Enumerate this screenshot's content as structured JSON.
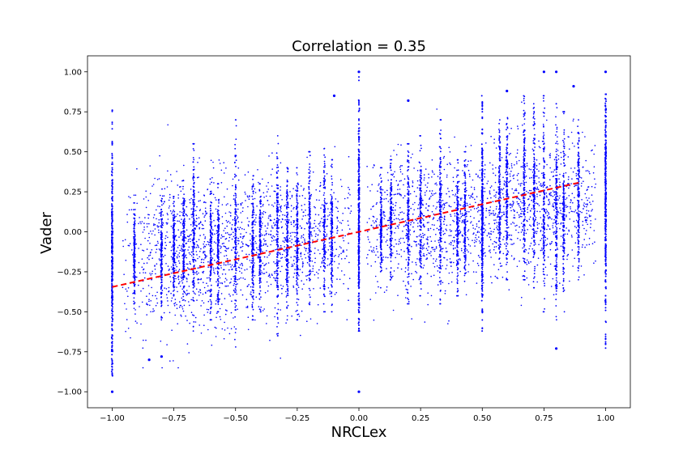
{
  "chart_data": {
    "type": "scatter",
    "title": "Correlation = 0.35",
    "xlabel": "NRCLex",
    "ylabel": "Vader",
    "xlim": [
      -1.1,
      1.1
    ],
    "ylim": [
      -1.1,
      1.1
    ],
    "x_ticks": [
      -1.0,
      -0.75,
      -0.5,
      -0.25,
      0.0,
      0.25,
      0.5,
      0.75,
      1.0
    ],
    "x_tick_labels": [
      "−1.00",
      "−0.75",
      "−0.50",
      "−0.25",
      "0.00",
      "0.25",
      "0.50",
      "0.75",
      "1.00"
    ],
    "y_ticks": [
      -1.0,
      -0.75,
      -0.5,
      -0.25,
      0.0,
      0.25,
      0.5,
      0.75,
      1.0
    ],
    "y_tick_labels": [
      "−1.00",
      "−0.75",
      "−0.50",
      "−0.25",
      "0.00",
      "0.25",
      "0.50",
      "0.75",
      "1.00"
    ],
    "grid": false,
    "legend": "none",
    "point_color": "#0000ff",
    "trend_color": "#ff0000",
    "trend_style": "dashed",
    "trend_line": {
      "x": [
        -1.0,
        0.9
      ],
      "y": [
        -0.345,
        0.31
      ]
    },
    "correlation": 0.35,
    "dense_columns": [
      {
        "x": -1.0,
        "ymin": -0.9,
        "ymax": 0.76,
        "center": -0.2,
        "spread": 0.3
      },
      {
        "x": 0.0,
        "ymin": -0.62,
        "ymax": 0.98,
        "center": 0.05,
        "spread": 0.3
      },
      {
        "x": 0.5,
        "ymin": -0.62,
        "ymax": 0.85,
        "center": 0.1,
        "spread": 0.25
      },
      {
        "x": 1.0,
        "ymin": -0.75,
        "ymax": 0.86,
        "center": 0.25,
        "spread": 0.3
      }
    ],
    "columns": [
      {
        "x": -0.91,
        "ymin": -0.45,
        "ymax": 0.18
      },
      {
        "x": -0.8,
        "ymin": -0.55,
        "ymax": 0.28
      },
      {
        "x": -0.75,
        "ymin": -0.45,
        "ymax": 0.22
      },
      {
        "x": -0.71,
        "ymin": -0.45,
        "ymax": 0.32
      },
      {
        "x": -0.67,
        "ymin": -0.62,
        "ymax": 0.55
      },
      {
        "x": -0.6,
        "ymin": -0.55,
        "ymax": 0.33
      },
      {
        "x": -0.57,
        "ymin": -0.5,
        "ymax": 0.3
      },
      {
        "x": -0.5,
        "ymin": -0.72,
        "ymax": 0.7
      },
      {
        "x": -0.43,
        "ymin": -0.55,
        "ymax": 0.35
      },
      {
        "x": -0.4,
        "ymin": -0.5,
        "ymax": 0.3
      },
      {
        "x": -0.33,
        "ymin": -0.65,
        "ymax": 0.6
      },
      {
        "x": -0.29,
        "ymin": -0.55,
        "ymax": 0.4
      },
      {
        "x": -0.25,
        "ymin": -0.55,
        "ymax": 0.4
      },
      {
        "x": -0.2,
        "ymin": -0.45,
        "ymax": 0.5
      },
      {
        "x": -0.14,
        "ymin": -0.5,
        "ymax": 0.55
      },
      {
        "x": -0.11,
        "ymin": -0.5,
        "ymax": 0.45
      },
      {
        "x": 0.09,
        "ymin": -0.35,
        "ymax": 0.4
      },
      {
        "x": 0.13,
        "ymin": -0.3,
        "ymax": 0.45
      },
      {
        "x": 0.2,
        "ymin": -0.45,
        "ymax": 0.55
      },
      {
        "x": 0.25,
        "ymin": -0.4,
        "ymax": 0.6
      },
      {
        "x": 0.33,
        "ymin": -0.45,
        "ymax": 0.7
      },
      {
        "x": 0.4,
        "ymin": -0.4,
        "ymax": 0.45
      },
      {
        "x": 0.43,
        "ymin": -0.35,
        "ymax": 0.5
      },
      {
        "x": 0.57,
        "ymin": -0.25,
        "ymax": 0.7
      },
      {
        "x": 0.6,
        "ymin": -0.3,
        "ymax": 0.75
      },
      {
        "x": 0.67,
        "ymin": -0.3,
        "ymax": 0.85
      },
      {
        "x": 0.71,
        "ymin": -0.35,
        "ymax": 0.8
      },
      {
        "x": 0.75,
        "ymin": -0.5,
        "ymax": 0.85
      },
      {
        "x": 0.8,
        "ymin": -0.55,
        "ymax": 0.8
      },
      {
        "x": 0.83,
        "ymin": -0.5,
        "ymax": 0.75
      },
      {
        "x": 0.89,
        "ymin": -0.3,
        "ymax": 0.7
      }
    ],
    "clusters": [
      {
        "x": -0.7,
        "y": -0.15,
        "sx": 0.17,
        "sy": 0.25
      },
      {
        "x": -0.27,
        "y": -0.05,
        "sx": 0.2,
        "sy": 0.2
      },
      {
        "x": 0.25,
        "y": 0.05,
        "sx": 0.18,
        "sy": 0.2
      },
      {
        "x": 0.73,
        "y": 0.15,
        "sx": 0.17,
        "sy": 0.2
      }
    ],
    "outliers": [
      {
        "x": -1.0,
        "y": -1.0
      },
      {
        "x": 0.0,
        "y": -1.0
      },
      {
        "x": 0.0,
        "y": 1.0
      },
      {
        "x": 1.0,
        "y": 1.0
      },
      {
        "x": 0.75,
        "y": 1.0
      },
      {
        "x": 0.8,
        "y": 1.0
      },
      {
        "x": 0.2,
        "y": 0.82
      },
      {
        "x": 0.6,
        "y": 0.88
      },
      {
        "x": 0.87,
        "y": 0.91
      },
      {
        "x": -0.1,
        "y": 0.85
      },
      {
        "x": -0.85,
        "y": -0.8
      },
      {
        "x": -0.8,
        "y": -0.78
      },
      {
        "x": 0.8,
        "y": -0.73
      }
    ]
  }
}
